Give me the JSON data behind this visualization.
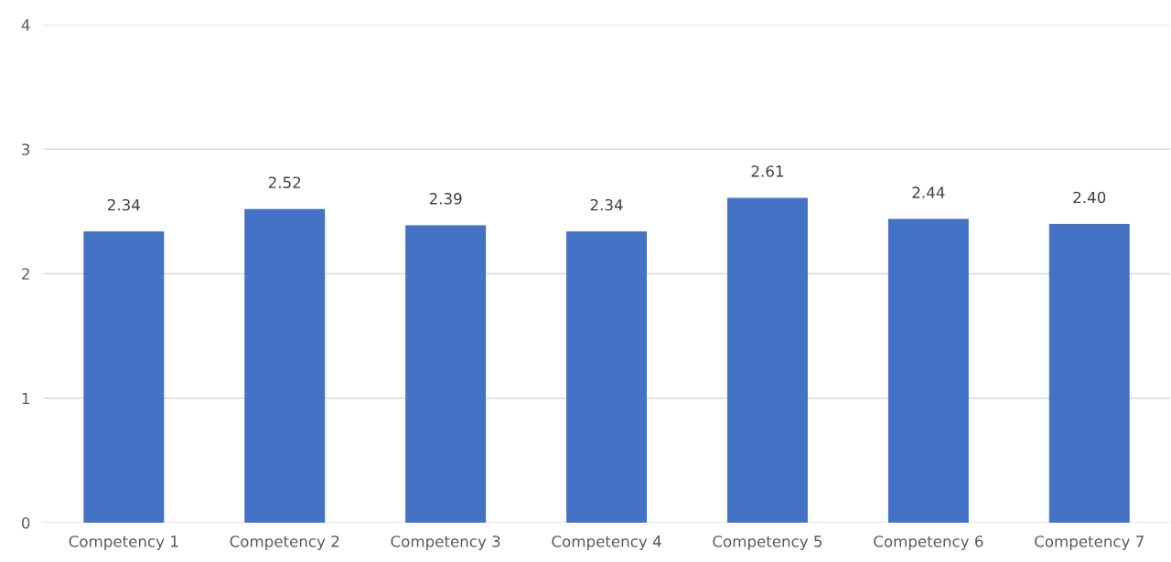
{
  "chart_data": {
    "type": "bar",
    "categories": [
      "Competency 1",
      "Competency 2",
      "Competency 3",
      "Competency 4",
      "Competency 5",
      "Competency 6",
      "Competency 7"
    ],
    "values": [
      2.34,
      2.52,
      2.39,
      2.34,
      2.61,
      2.44,
      2.4
    ],
    "value_labels": [
      "2.34",
      "2.52",
      "2.39",
      "2.34",
      "2.61",
      "2.44",
      "2.40"
    ],
    "color": "#4472c4",
    "ylim": [
      0,
      4
    ],
    "yticks": [
      0,
      1,
      2,
      3,
      4
    ],
    "grid": "y"
  }
}
